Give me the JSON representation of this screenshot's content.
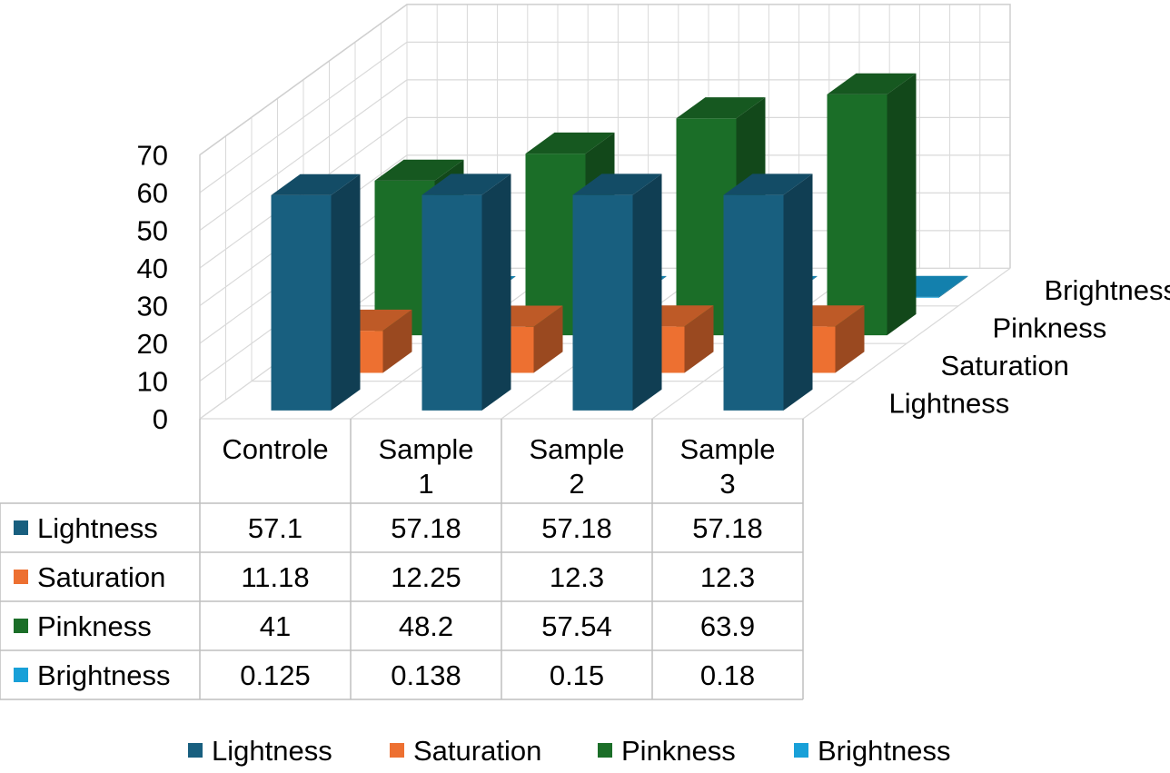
{
  "chart_data": {
    "type": "bar",
    "subtype": "3d-column-with-data-table",
    "title": "",
    "xlabel": "",
    "ylabel": "",
    "categories": [
      "Controle",
      "Sample 1",
      "Sample 2",
      "Sample 3"
    ],
    "category_lines": [
      [
        "Controle"
      ],
      [
        "Sample",
        "1"
      ],
      [
        "Sample",
        "2"
      ],
      [
        "Sample",
        "3"
      ]
    ],
    "ylim": [
      0,
      70
    ],
    "yticks": [
      "0",
      "10",
      "20",
      "30",
      "40",
      "50",
      "60",
      "70"
    ],
    "grid": true,
    "legend": "bottom",
    "series": [
      {
        "name": "Lightness",
        "color": "#185f7f",
        "values": [
          57.1,
          57.18,
          57.18,
          57.18
        ],
        "labels": [
          "57.1",
          "57.18",
          "57.18",
          "57.18"
        ]
      },
      {
        "name": "Saturation",
        "color": "#ed7031",
        "values": [
          11.18,
          12.25,
          12.3,
          12.3
        ],
        "labels": [
          "11.18",
          "12.25",
          "12.3",
          "12.3"
        ]
      },
      {
        "name": "Pinkness",
        "color": "#1b6e28",
        "values": [
          41,
          48.2,
          57.54,
          63.9
        ],
        "labels": [
          "41",
          "48.2",
          "57.54",
          "63.9"
        ]
      },
      {
        "name": "Brightness",
        "color": "#18a0d8",
        "values": [
          0.125,
          0.138,
          0.15,
          0.18
        ],
        "labels": [
          "0.125",
          "0.138",
          "0.15",
          "0.18"
        ]
      }
    ]
  }
}
